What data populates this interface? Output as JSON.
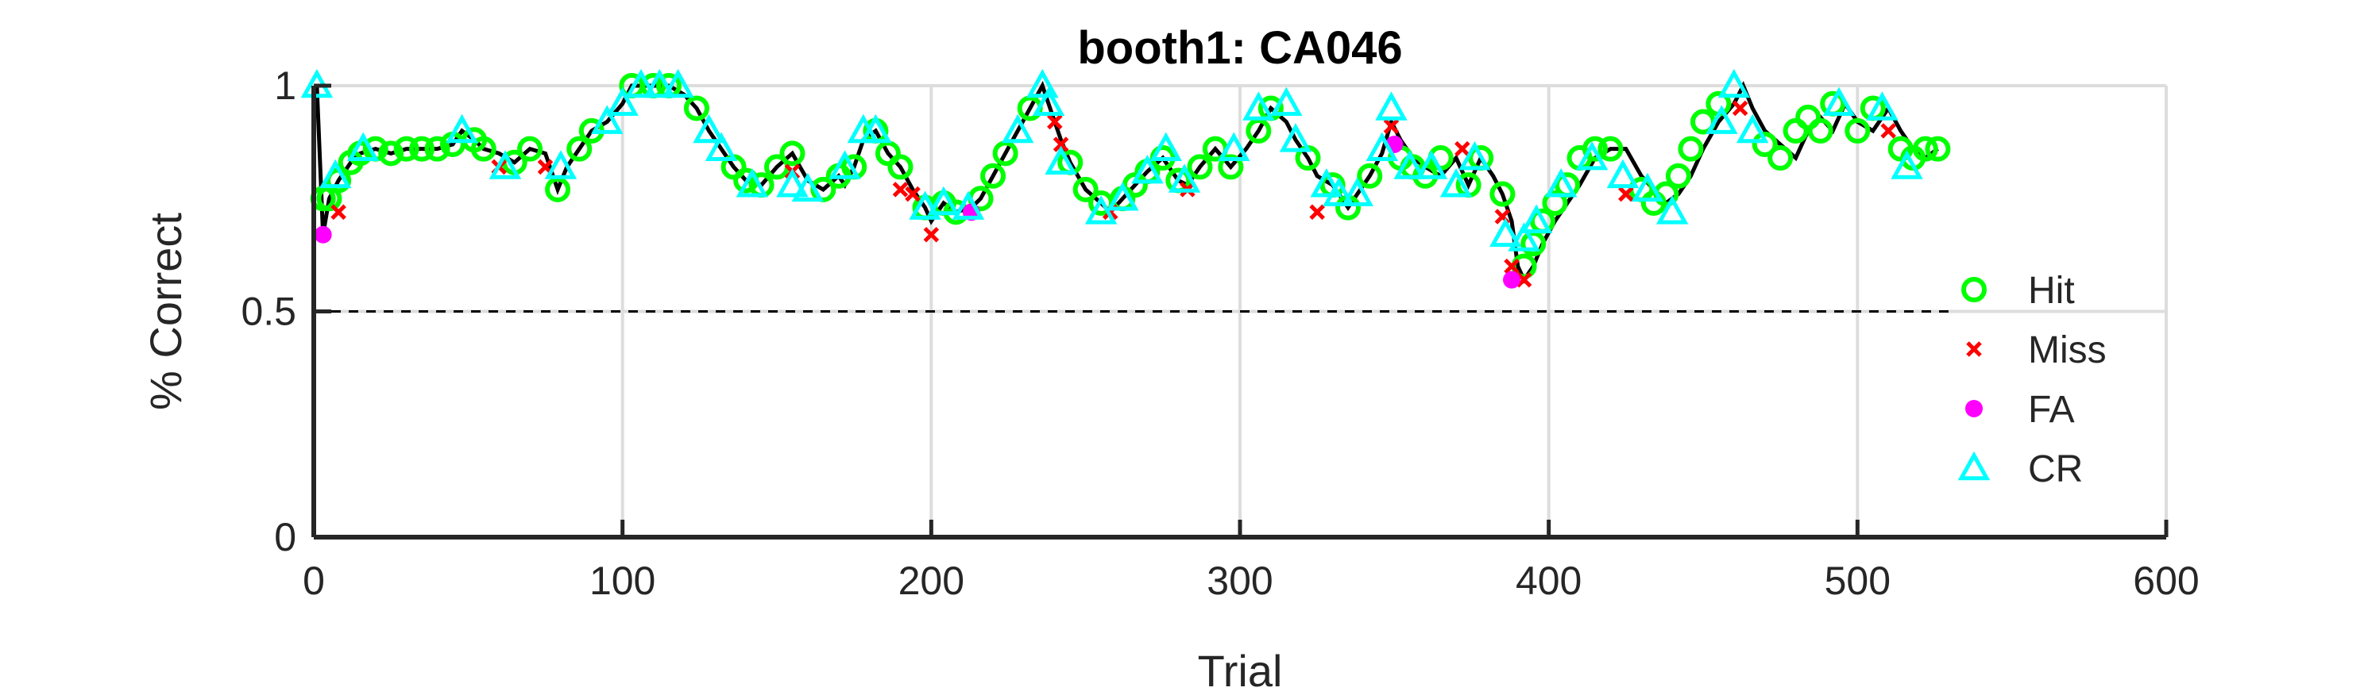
{
  "chart_data": {
    "type": "line",
    "title": "booth1: CA046",
    "xlabel": "Trial",
    "ylabel": "% Correct",
    "xlim": [
      0,
      600
    ],
    "ylim": [
      0,
      1
    ],
    "xticks": [
      0,
      100,
      200,
      300,
      400,
      500,
      600
    ],
    "yticks": [
      0,
      0.5,
      1
    ],
    "grid": true,
    "reference_line": {
      "y": 0.5,
      "style": "dashed"
    },
    "legend_position": "right",
    "colors": {
      "line": "#000000",
      "hit": "#00ff00",
      "miss": "#ff0000",
      "fa": "#ff00ff",
      "cr": "#00ffff",
      "grid": "#dddddd"
    },
    "performance": {
      "x": [
        1,
        3,
        5,
        8,
        12,
        15,
        20,
        25,
        30,
        35,
        40,
        45,
        48,
        52,
        55,
        60,
        65,
        70,
        75,
        79,
        82,
        86,
        90,
        95,
        100,
        103,
        110,
        115,
        120,
        124,
        128,
        132,
        136,
        140,
        145,
        150,
        155,
        160,
        165,
        170,
        172,
        175,
        178,
        182,
        186,
        190,
        194,
        198,
        200,
        204,
        208,
        213,
        216,
        220,
        224,
        228,
        232,
        236,
        238,
        240,
        242,
        245,
        250,
        255,
        258,
        262,
        266,
        270,
        275,
        280,
        283,
        287,
        292,
        297,
        302,
        306,
        310,
        315,
        318,
        322,
        325,
        330,
        335,
        338,
        342,
        346,
        349,
        352,
        356,
        360,
        365,
        370,
        374,
        378,
        382,
        385,
        388,
        390,
        392,
        395,
        398,
        402,
        406,
        410,
        415,
        420,
        425,
        430,
        434,
        438,
        442,
        446,
        450,
        455,
        460,
        463,
        466,
        470,
        475,
        480,
        484,
        488,
        492,
        496,
        500,
        505,
        510,
        514,
        518,
        522,
        526
      ],
      "y": [
        1.0,
        0.67,
        0.75,
        0.79,
        0.83,
        0.85,
        0.86,
        0.85,
        0.86,
        0.86,
        0.86,
        0.87,
        0.9,
        0.88,
        0.86,
        0.85,
        0.83,
        0.86,
        0.85,
        0.77,
        0.82,
        0.86,
        0.9,
        0.92,
        0.96,
        1.0,
        1.0,
        1.0,
        0.98,
        0.95,
        0.9,
        0.86,
        0.82,
        0.79,
        0.78,
        0.82,
        0.85,
        0.79,
        0.77,
        0.8,
        0.78,
        0.82,
        0.88,
        0.9,
        0.85,
        0.82,
        0.77,
        0.73,
        0.7,
        0.74,
        0.72,
        0.73,
        0.75,
        0.8,
        0.85,
        0.9,
        0.95,
        1.0,
        0.96,
        0.92,
        0.88,
        0.83,
        0.77,
        0.74,
        0.72,
        0.75,
        0.78,
        0.81,
        0.84,
        0.79,
        0.78,
        0.82,
        0.86,
        0.82,
        0.86,
        0.9,
        0.95,
        0.92,
        0.88,
        0.84,
        0.8,
        0.78,
        0.73,
        0.76,
        0.8,
        0.85,
        0.92,
        0.88,
        0.84,
        0.82,
        0.8,
        0.84,
        0.78,
        0.84,
        0.8,
        0.76,
        0.7,
        0.6,
        0.57,
        0.6,
        0.65,
        0.7,
        0.74,
        0.78,
        0.84,
        0.86,
        0.86,
        0.8,
        0.77,
        0.74,
        0.76,
        0.8,
        0.86,
        0.92,
        0.96,
        1.0,
        0.95,
        0.9,
        0.87,
        0.84,
        0.9,
        0.93,
        0.9,
        0.96,
        0.92,
        0.9,
        0.95,
        0.9,
        0.86,
        0.84,
        0.86
      ]
    },
    "series": [
      {
        "name": "Hit",
        "marker": "circle-open",
        "x": [
          3,
          5,
          8,
          12,
          15,
          20,
          25,
          30,
          35,
          40,
          45,
          52,
          55,
          65,
          70,
          79,
          86,
          90,
          103,
          110,
          115,
          124,
          136,
          140,
          145,
          150,
          155,
          165,
          170,
          175,
          182,
          186,
          190,
          198,
          204,
          208,
          216,
          220,
          224,
          232,
          245,
          250,
          255,
          262,
          266,
          270,
          275,
          280,
          287,
          292,
          297,
          306,
          310,
          322,
          330,
          335,
          342,
          352,
          356,
          360,
          365,
          374,
          378,
          385,
          392,
          395,
          398,
          402,
          406,
          410,
          415,
          420,
          430,
          434,
          438,
          442,
          446,
          450,
          455,
          470,
          475,
          480,
          484,
          488,
          492,
          500,
          505,
          514,
          518,
          522,
          526
        ],
        "y": [
          0.75,
          0.75,
          0.79,
          0.83,
          0.85,
          0.86,
          0.85,
          0.86,
          0.86,
          0.86,
          0.87,
          0.88,
          0.86,
          0.83,
          0.86,
          0.77,
          0.86,
          0.9,
          1.0,
          1.0,
          1.0,
          0.95,
          0.82,
          0.79,
          0.78,
          0.82,
          0.85,
          0.77,
          0.8,
          0.82,
          0.9,
          0.85,
          0.82,
          0.73,
          0.74,
          0.72,
          0.75,
          0.8,
          0.85,
          0.95,
          0.83,
          0.77,
          0.74,
          0.75,
          0.78,
          0.81,
          0.84,
          0.79,
          0.82,
          0.86,
          0.82,
          0.9,
          0.95,
          0.84,
          0.78,
          0.73,
          0.8,
          0.84,
          0.82,
          0.8,
          0.84,
          0.78,
          0.84,
          0.76,
          0.6,
          0.65,
          0.7,
          0.74,
          0.78,
          0.84,
          0.86,
          0.86,
          0.77,
          0.74,
          0.76,
          0.8,
          0.86,
          0.92,
          0.96,
          0.87,
          0.84,
          0.9,
          0.93,
          0.9,
          0.96,
          0.9,
          0.95,
          0.86,
          0.84,
          0.86,
          0.86
        ]
      },
      {
        "name": "Miss",
        "marker": "x",
        "x": [
          8,
          60,
          75,
          155,
          190,
          194,
          200,
          240,
          242,
          258,
          283,
          325,
          349,
          372,
          385,
          388,
          392,
          425,
          462,
          510
        ],
        "y": [
          0.72,
          0.82,
          0.82,
          0.81,
          0.77,
          0.76,
          0.67,
          0.92,
          0.87,
          0.72,
          0.77,
          0.72,
          0.91,
          0.86,
          0.71,
          0.6,
          0.57,
          0.76,
          0.95,
          0.9
        ]
      },
      {
        "name": "FA",
        "marker": "dot",
        "x": [
          3,
          213,
          350,
          388
        ],
        "y": [
          0.67,
          0.72,
          0.87,
          0.57
        ]
      },
      {
        "name": "CR",
        "marker": "triangle-open",
        "x": [
          1,
          7,
          16,
          48,
          62,
          80,
          95,
          100,
          106,
          112,
          118,
          128,
          132,
          142,
          155,
          160,
          172,
          178,
          182,
          198,
          204,
          212,
          228,
          236,
          238,
          242,
          255,
          262,
          270,
          276,
          282,
          298,
          306,
          315,
          318,
          328,
          332,
          338,
          346,
          349,
          355,
          362,
          370,
          376,
          386,
          392,
          396,
          404,
          414,
          424,
          432,
          440,
          456,
          460,
          466,
          494,
          508,
          516
        ],
        "y": [
          1.0,
          0.8,
          0.86,
          0.9,
          0.82,
          0.82,
          0.92,
          0.96,
          1.0,
          1.0,
          1.0,
          0.9,
          0.86,
          0.78,
          0.78,
          0.77,
          0.82,
          0.9,
          0.9,
          0.73,
          0.74,
          0.73,
          0.9,
          1.0,
          0.96,
          0.83,
          0.72,
          0.75,
          0.81,
          0.86,
          0.79,
          0.86,
          0.95,
          0.96,
          0.88,
          0.78,
          0.76,
          0.76,
          0.86,
          0.95,
          0.82,
          0.82,
          0.78,
          0.84,
          0.67,
          0.66,
          0.7,
          0.78,
          0.84,
          0.8,
          0.77,
          0.72,
          0.92,
          1.0,
          0.9,
          0.96,
          0.95,
          0.82
        ]
      }
    ]
  }
}
